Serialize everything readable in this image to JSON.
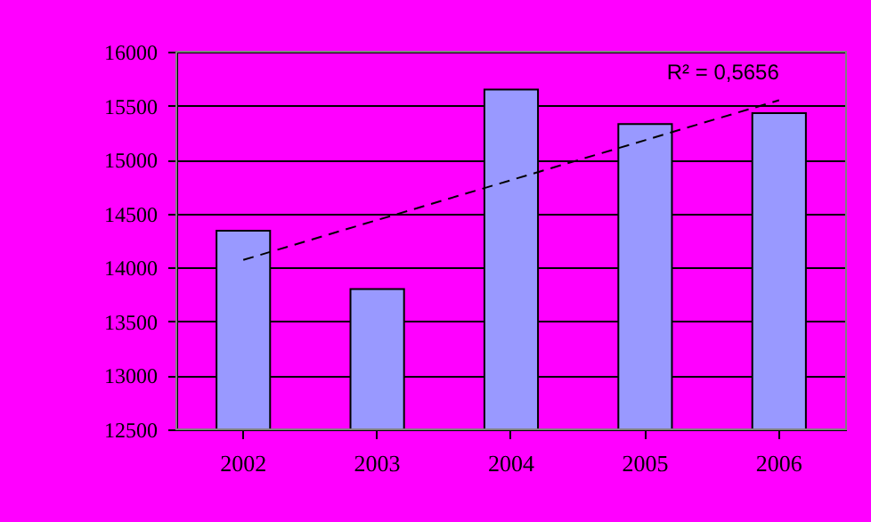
{
  "chart_data": {
    "type": "bar",
    "categories": [
      "2002",
      "2003",
      "2004",
      "2005",
      "2006"
    ],
    "series": [
      {
        "color": "#9999ff",
        "values": [
          14340,
          13800,
          15650,
          15330,
          15430
        ]
      },
      {
        "type": "line",
        "color": "#000000",
        "line_style": "dashed",
        "values": [
          14070,
          14440,
          14810,
          15180,
          15550
        ]
      }
    ],
    "ylim": [
      12500,
      16000
    ],
    "yticks": [
      12500,
      13000,
      13500,
      14000,
      14500,
      15000,
      15500,
      16000
    ],
    "grid": "y",
    "annotations": [
      {
        "text": "R² = 0,5656",
        "x": "2006",
        "y": 15550
      }
    ]
  }
}
